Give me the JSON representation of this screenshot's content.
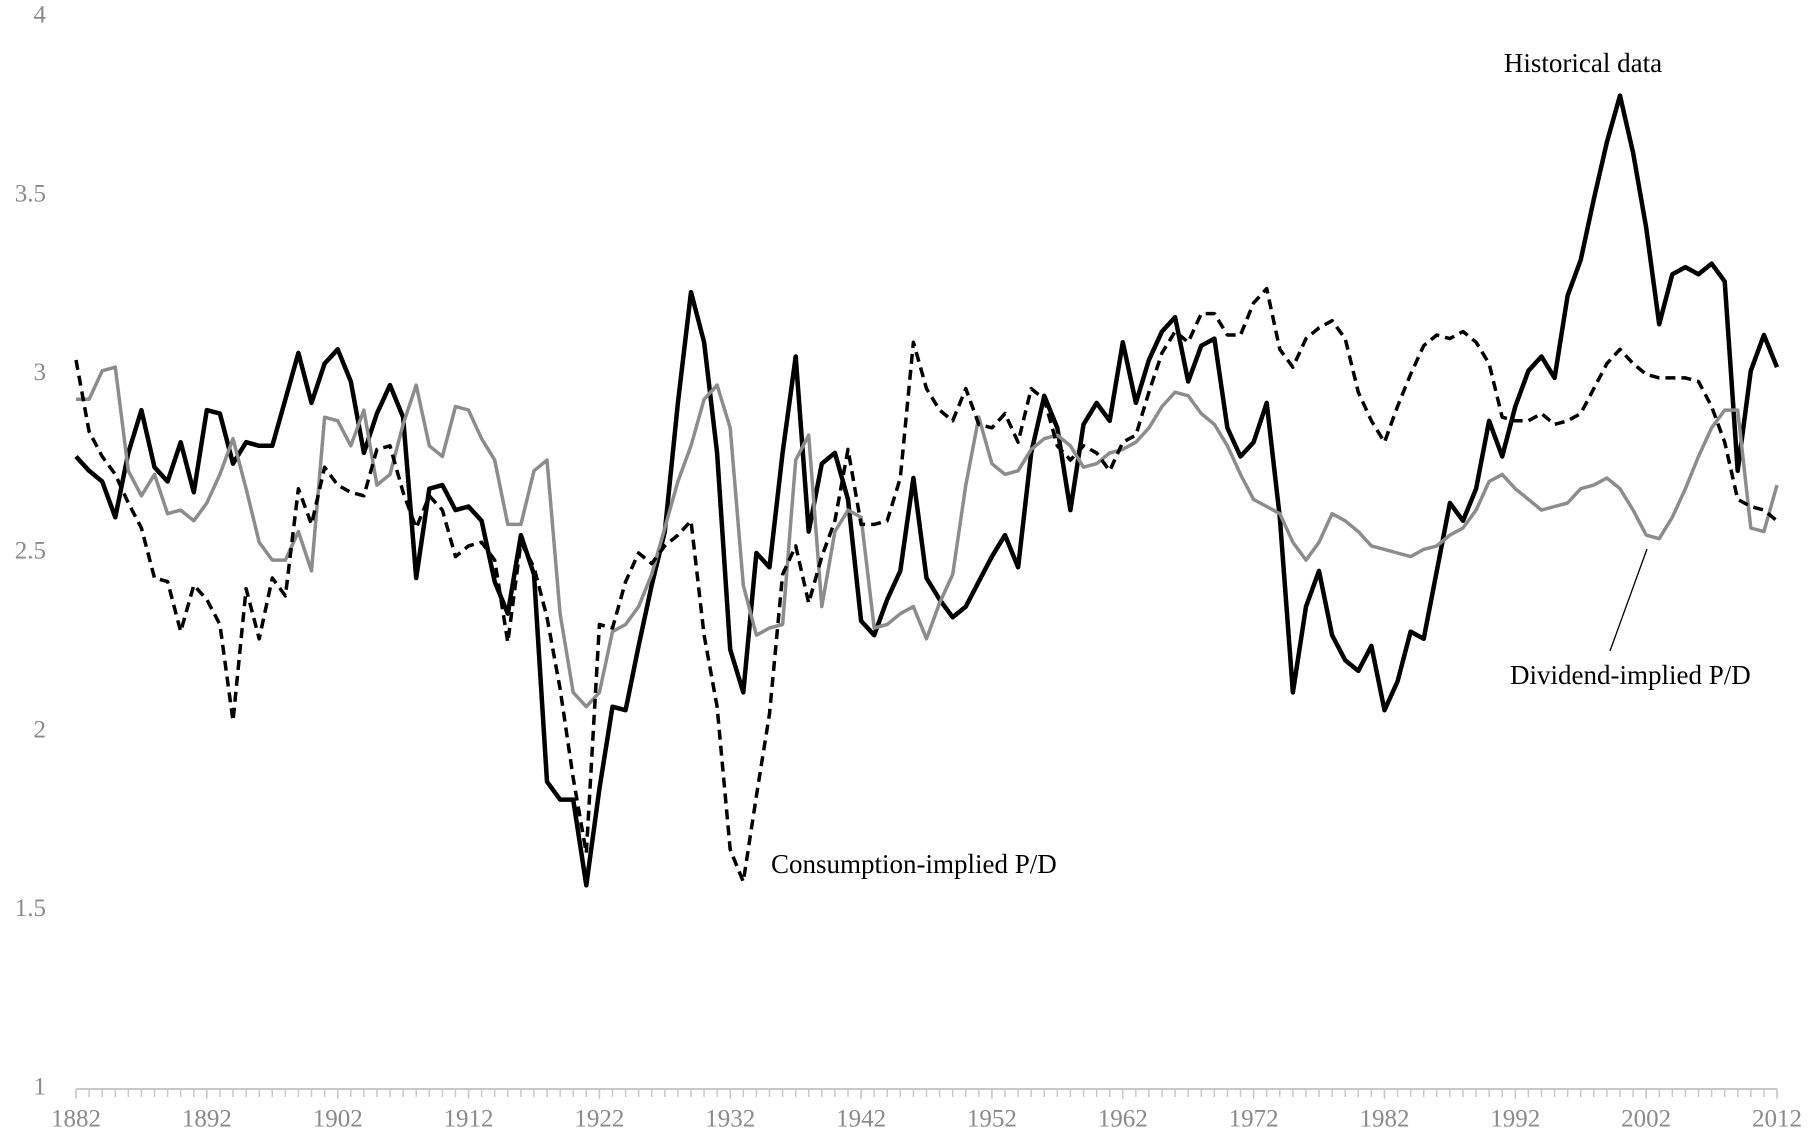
{
  "chart_data": {
    "type": "line",
    "x": [
      1882,
      1883,
      1884,
      1885,
      1886,
      1887,
      1888,
      1889,
      1890,
      1891,
      1892,
      1893,
      1894,
      1895,
      1896,
      1897,
      1898,
      1899,
      1900,
      1901,
      1902,
      1903,
      1904,
      1905,
      1906,
      1907,
      1908,
      1909,
      1910,
      1911,
      1912,
      1913,
      1914,
      1915,
      1916,
      1917,
      1918,
      1919,
      1920,
      1921,
      1922,
      1923,
      1924,
      1925,
      1926,
      1927,
      1928,
      1929,
      1930,
      1931,
      1932,
      1933,
      1934,
      1935,
      1936,
      1937,
      1938,
      1939,
      1940,
      1941,
      1942,
      1943,
      1944,
      1945,
      1946,
      1947,
      1948,
      1949,
      1950,
      1951,
      1952,
      1953,
      1954,
      1955,
      1956,
      1957,
      1958,
      1959,
      1960,
      1961,
      1962,
      1963,
      1964,
      1965,
      1966,
      1967,
      1968,
      1969,
      1970,
      1971,
      1972,
      1973,
      1974,
      1975,
      1976,
      1977,
      1978,
      1979,
      1980,
      1981,
      1982,
      1983,
      1984,
      1985,
      1986,
      1987,
      1988,
      1989,
      1990,
      1991,
      1992,
      1993,
      1994,
      1995,
      1996,
      1997,
      1998,
      1999,
      2000,
      2001,
      2002,
      2003,
      2004,
      2005,
      2006,
      2007,
      2008,
      2009,
      2010,
      2011,
      2012
    ],
    "series": [
      {
        "name": "Historical data",
        "color": "#000000",
        "line_style": "solid",
        "values": [
          2.77,
          2.73,
          2.7,
          2.6,
          2.78,
          2.9,
          2.74,
          2.7,
          2.81,
          2.67,
          2.9,
          2.89,
          2.75,
          2.81,
          2.8,
          2.8,
          2.93,
          3.06,
          2.92,
          3.03,
          3.07,
          2.98,
          2.78,
          2.89,
          2.97,
          2.88,
          2.43,
          2.68,
          2.69,
          2.62,
          2.63,
          2.59,
          2.42,
          2.33,
          2.55,
          2.44,
          1.86,
          1.81,
          1.81,
          1.57,
          1.84,
          2.07,
          2.06,
          2.24,
          2.41,
          2.56,
          2.92,
          3.23,
          3.09,
          2.78,
          2.23,
          2.11,
          2.5,
          2.46,
          2.78,
          3.05,
          2.56,
          2.75,
          2.78,
          2.65,
          2.31,
          2.27,
          2.37,
          2.45,
          2.71,
          2.43,
          2.37,
          2.32,
          2.35,
          2.42,
          2.49,
          2.55,
          2.46,
          2.78,
          2.94,
          2.85,
          2.62,
          2.86,
          2.92,
          2.87,
          3.09,
          2.92,
          3.04,
          3.12,
          3.16,
          2.98,
          3.08,
          3.1,
          2.85,
          2.77,
          2.81,
          2.92,
          2.6,
          2.11,
          2.35,
          2.45,
          2.27,
          2.2,
          2.17,
          2.24,
          2.06,
          2.14,
          2.28,
          2.26,
          2.45,
          2.64,
          2.59,
          2.68,
          2.87,
          2.77,
          2.91,
          3.01,
          3.05,
          2.99,
          3.22,
          3.32,
          3.49,
          3.65,
          3.78,
          3.62,
          3.41,
          3.14,
          3.28,
          3.3,
          3.28,
          3.31,
          3.26,
          2.73,
          3.01,
          3.11,
          3.02
        ]
      },
      {
        "name": "Dividend-implied P/D",
        "color": "#8c8c8c",
        "line_style": "solid",
        "values": [
          2.93,
          2.93,
          3.01,
          3.02,
          2.73,
          2.66,
          2.72,
          2.61,
          2.62,
          2.59,
          2.64,
          2.72,
          2.82,
          2.68,
          2.53,
          2.48,
          2.48,
          2.56,
          2.45,
          2.88,
          2.87,
          2.8,
          2.9,
          2.69,
          2.72,
          2.86,
          2.97,
          2.8,
          2.77,
          2.91,
          2.9,
          2.82,
          2.76,
          2.58,
          2.58,
          2.73,
          2.76,
          2.33,
          2.11,
          2.07,
          2.11,
          2.28,
          2.3,
          2.35,
          2.44,
          2.57,
          2.7,
          2.8,
          2.93,
          2.97,
          2.85,
          2.41,
          2.27,
          2.29,
          2.3,
          2.76,
          2.83,
          2.35,
          2.56,
          2.62,
          2.6,
          2.29,
          2.3,
          2.33,
          2.35,
          2.26,
          2.36,
          2.44,
          2.69,
          2.88,
          2.75,
          2.72,
          2.73,
          2.79,
          2.82,
          2.83,
          2.8,
          2.74,
          2.75,
          2.78,
          2.79,
          2.81,
          2.85,
          2.91,
          2.95,
          2.94,
          2.89,
          2.86,
          2.8,
          2.72,
          2.65,
          2.63,
          2.61,
          2.53,
          2.48,
          2.53,
          2.61,
          2.59,
          2.56,
          2.52,
          2.51,
          2.5,
          2.49,
          2.51,
          2.52,
          2.55,
          2.57,
          2.62,
          2.7,
          2.72,
          2.68,
          2.65,
          2.62,
          2.63,
          2.64,
          2.68,
          2.69,
          2.71,
          2.68,
          2.62,
          2.55,
          2.54,
          2.6,
          2.68,
          2.77,
          2.85,
          2.9,
          2.9,
          2.57,
          2.56,
          2.69
        ]
      },
      {
        "name": "Consumption-implied P/D",
        "color": "#000000",
        "line_style": "dashed",
        "values": [
          3.04,
          2.84,
          2.77,
          2.72,
          2.64,
          2.57,
          2.43,
          2.42,
          2.28,
          2.41,
          2.37,
          2.3,
          2.03,
          2.4,
          2.26,
          2.43,
          2.38,
          2.68,
          2.58,
          2.74,
          2.69,
          2.67,
          2.66,
          2.79,
          2.8,
          2.67,
          2.57,
          2.66,
          2.62,
          2.49,
          2.52,
          2.53,
          2.48,
          2.25,
          2.53,
          2.46,
          2.32,
          2.12,
          1.87,
          1.66,
          2.3,
          2.29,
          2.42,
          2.5,
          2.47,
          2.52,
          2.55,
          2.59,
          2.27,
          2.07,
          1.67,
          1.58,
          1.82,
          2.05,
          2.44,
          2.52,
          2.36,
          2.49,
          2.59,
          2.79,
          2.58,
          2.58,
          2.59,
          2.71,
          3.09,
          2.96,
          2.9,
          2.87,
          2.96,
          2.86,
          2.85,
          2.89,
          2.81,
          2.96,
          2.93,
          2.8,
          2.76,
          2.8,
          2.78,
          2.73,
          2.81,
          2.83,
          2.95,
          3.06,
          3.12,
          3.09,
          3.17,
          3.17,
          3.11,
          3.11,
          3.2,
          3.24,
          3.07,
          3.02,
          3.1,
          3.13,
          3.15,
          3.1,
          2.95,
          2.87,
          2.81,
          2.91,
          3.0,
          3.08,
          3.11,
          3.1,
          3.12,
          3.09,
          3.03,
          2.88,
          2.87,
          2.87,
          2.89,
          2.86,
          2.87,
          2.89,
          2.96,
          3.03,
          3.07,
          3.03,
          3.0,
          2.99,
          2.99,
          2.99,
          2.98,
          2.91,
          2.81,
          2.65,
          2.63,
          2.62,
          2.59
        ]
      }
    ],
    "xlim": [
      1882,
      2012
    ],
    "xticks": [
      1882,
      1892,
      1902,
      1912,
      1922,
      1932,
      1942,
      1952,
      1962,
      1972,
      1982,
      1992,
      2002,
      2012
    ],
    "ylim": [
      1,
      4
    ],
    "yticks": [
      1,
      1.5,
      2,
      2.5,
      3,
      3.5,
      4
    ],
    "grid": false
  }
}
